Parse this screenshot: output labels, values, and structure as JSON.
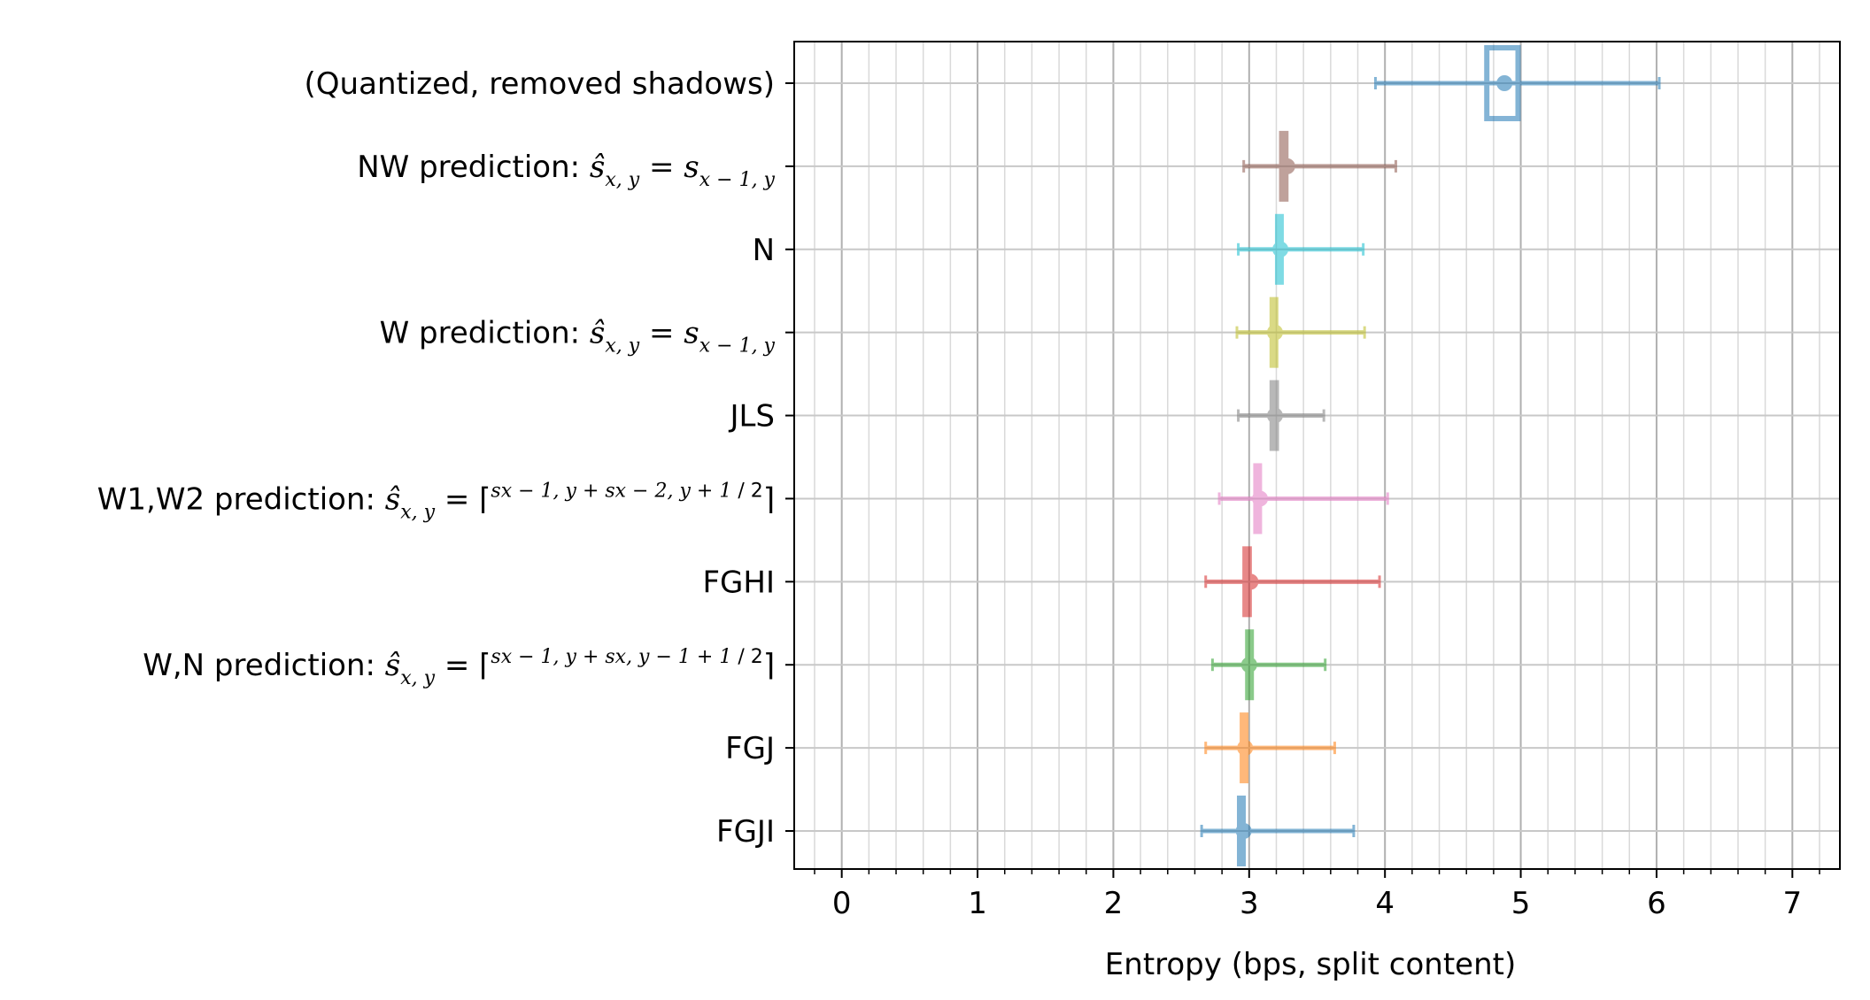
{
  "chart_data": {
    "type": "errorbar",
    "xlabel": "Entropy (bps, split content)",
    "xlim": [
      -0.35,
      7.35
    ],
    "xticks": [
      0,
      1,
      2,
      3,
      4,
      5,
      6,
      7
    ],
    "minor_step": 0.2,
    "grid": true,
    "rows": [
      {
        "label": "(Quantized, removed shadows)",
        "value": 4.88,
        "err_low": 3.93,
        "err_high": 6.02,
        "box_low": 4.75,
        "box_high": 4.98,
        "box_style": "hollow",
        "color": "#1f77b4"
      },
      {
        "label": "NW prediction: ŝx,y = sx−1,y",
        "label_parts": {
          "prefix": "NW prediction: ",
          "math": "ŝ",
          "sub1": "x, y",
          "eq": " = s",
          "sub2": "x − 1, y"
        },
        "value": 3.28,
        "err_low": 2.96,
        "err_high": 4.08,
        "box_low": 3.22,
        "box_high": 3.29,
        "box_style": "solid",
        "color": "#8c564b"
      },
      {
        "label": "N",
        "value": 3.23,
        "err_low": 2.92,
        "err_high": 3.84,
        "box_low": 3.19,
        "box_high": 3.25,
        "box_style": "solid",
        "color": "#17becf"
      },
      {
        "label": "W prediction: ŝx,y = sx−1,y",
        "label_parts": {
          "prefix": "W prediction: ",
          "math": "ŝ",
          "sub1": "x, y",
          "eq": " = s",
          "sub2": "x − 1, y"
        },
        "value": 3.19,
        "err_low": 2.91,
        "err_high": 3.85,
        "box_low": 3.15,
        "box_high": 3.21,
        "box_style": "solid",
        "color": "#bcbd22"
      },
      {
        "label": "JLS",
        "value": 3.19,
        "err_low": 2.92,
        "err_high": 3.55,
        "box_low": 3.15,
        "box_high": 3.22,
        "box_style": "solid",
        "color": "#7f7f7f"
      },
      {
        "label": "W1,W2 prediction: ŝx,y = ⌈(sx−1,y + sx−2,y + 1)/2⌉",
        "label_parts": {
          "prefix": "W1,W2 prediction: ",
          "math": "ŝ",
          "sub1": "x, y",
          "numerator": "sx − 1, y + sx − 2, y + 1",
          "denominator": "2"
        },
        "value": 3.08,
        "err_low": 2.78,
        "err_high": 4.02,
        "box_low": 3.03,
        "box_high": 3.09,
        "box_style": "solid",
        "color": "#e377c2"
      },
      {
        "label": "FGHI",
        "value": 3.01,
        "err_low": 2.68,
        "err_high": 3.96,
        "box_low": 2.95,
        "box_high": 3.02,
        "box_style": "solid",
        "color": "#d62728"
      },
      {
        "label": "W,N prediction: ŝx,y = ⌈(sx−1,y + sx,y−1 + 1)/2⌉",
        "label_parts": {
          "prefix": "W,N prediction: ",
          "math": "ŝ",
          "sub1": "x, y",
          "numerator": "sx − 1, y + sx, y − 1 + 1",
          "denominator": "2"
        },
        "value": 3.0,
        "err_low": 2.73,
        "err_high": 3.56,
        "box_low": 2.97,
        "box_high": 3.03,
        "box_style": "solid",
        "color": "#2ca02c"
      },
      {
        "label": "FGJ",
        "value": 2.97,
        "err_low": 2.68,
        "err_high": 3.63,
        "box_low": 2.93,
        "box_high": 2.99,
        "box_style": "solid",
        "color": "#ff7f0e"
      },
      {
        "label": "FGJI",
        "value": 2.96,
        "err_low": 2.65,
        "err_high": 3.77,
        "box_low": 2.91,
        "box_high": 2.97,
        "box_style": "solid",
        "color": "#1f77b4"
      }
    ]
  }
}
